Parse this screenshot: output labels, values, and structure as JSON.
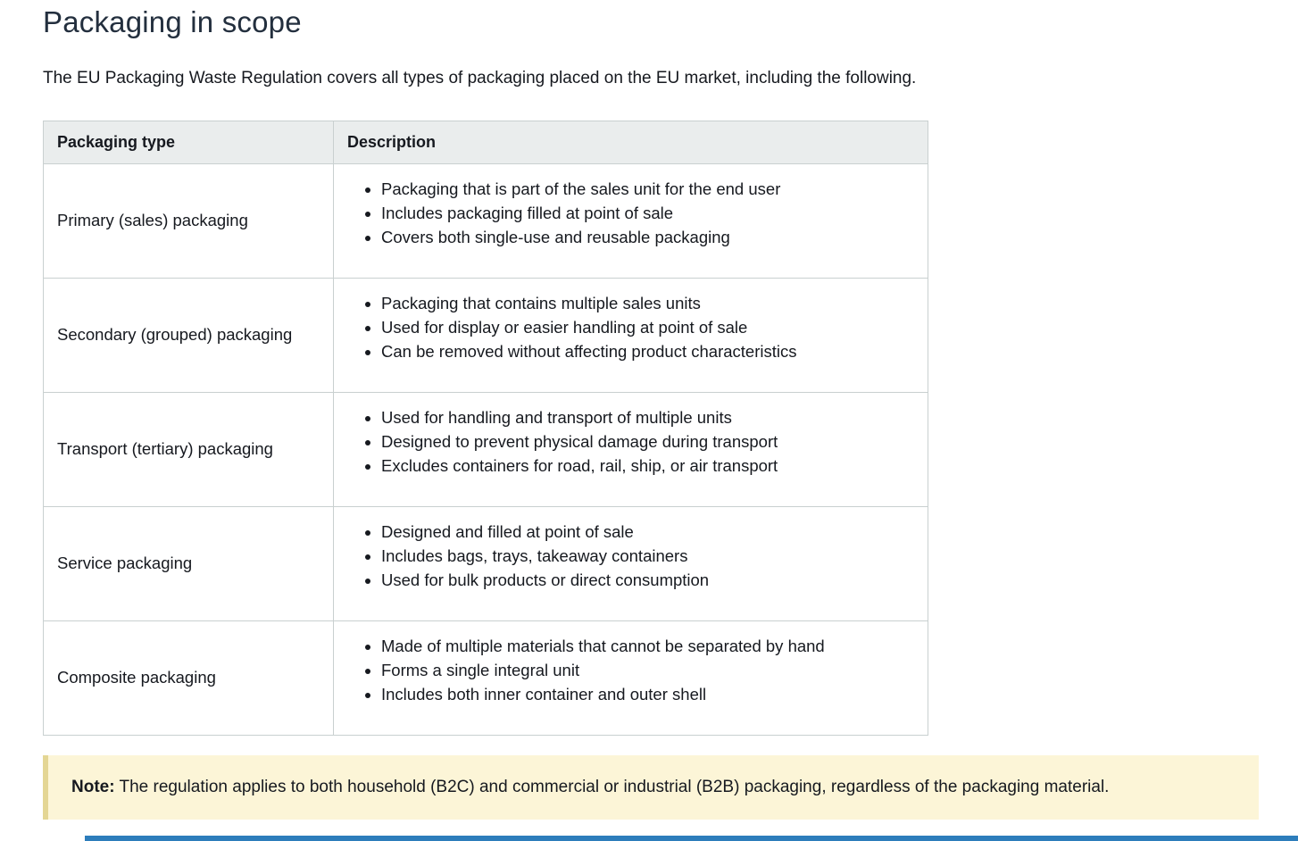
{
  "page": {
    "title": "Packaging in scope",
    "intro": "The EU Packaging Waste Regulation covers all types of packaging placed on the EU market, including the following."
  },
  "table": {
    "columns": [
      "Packaging type",
      "Description"
    ],
    "rows": [
      {
        "type": "Primary (sales) packaging",
        "bullets": [
          "Packaging that is part of the sales unit for the end user",
          "Includes packaging filled at point of sale",
          "Covers both single-use and reusable packaging"
        ]
      },
      {
        "type": "Secondary (grouped) packaging",
        "bullets": [
          "Packaging that contains multiple sales units",
          "Used for display or easier handling at point of sale",
          "Can be removed without affecting product characteristics"
        ]
      },
      {
        "type": "Transport (tertiary) packaging",
        "bullets": [
          "Used for handling and transport of multiple units",
          "Designed to prevent physical damage during transport",
          "Excludes containers for road, rail, ship, or air transport"
        ]
      },
      {
        "type": "Service packaging",
        "bullets": [
          "Designed and filled at point of sale",
          "Includes bags, trays, takeaway containers",
          "Used for bulk products or direct consumption"
        ]
      },
      {
        "type": "Composite packaging",
        "bullets": [
          "Made of multiple materials that cannot be separated by hand",
          "Forms a single integral unit",
          "Includes both inner container and outer shell"
        ]
      }
    ]
  },
  "note": {
    "label": "Note:",
    "text": "The regulation applies to both household (B2C) and commercial or industrial (B2B) packaging, regardless of the packaging material."
  },
  "colors": {
    "body_text": "#16191f",
    "heading_text": "#232f3e",
    "table_header_bg": "#eaeded",
    "table_border": "#c9d0d0",
    "note_bg": "#fcf5d7",
    "note_left_border": "#e4d694",
    "bottom_strip_blue": "#2d7dbb"
  }
}
